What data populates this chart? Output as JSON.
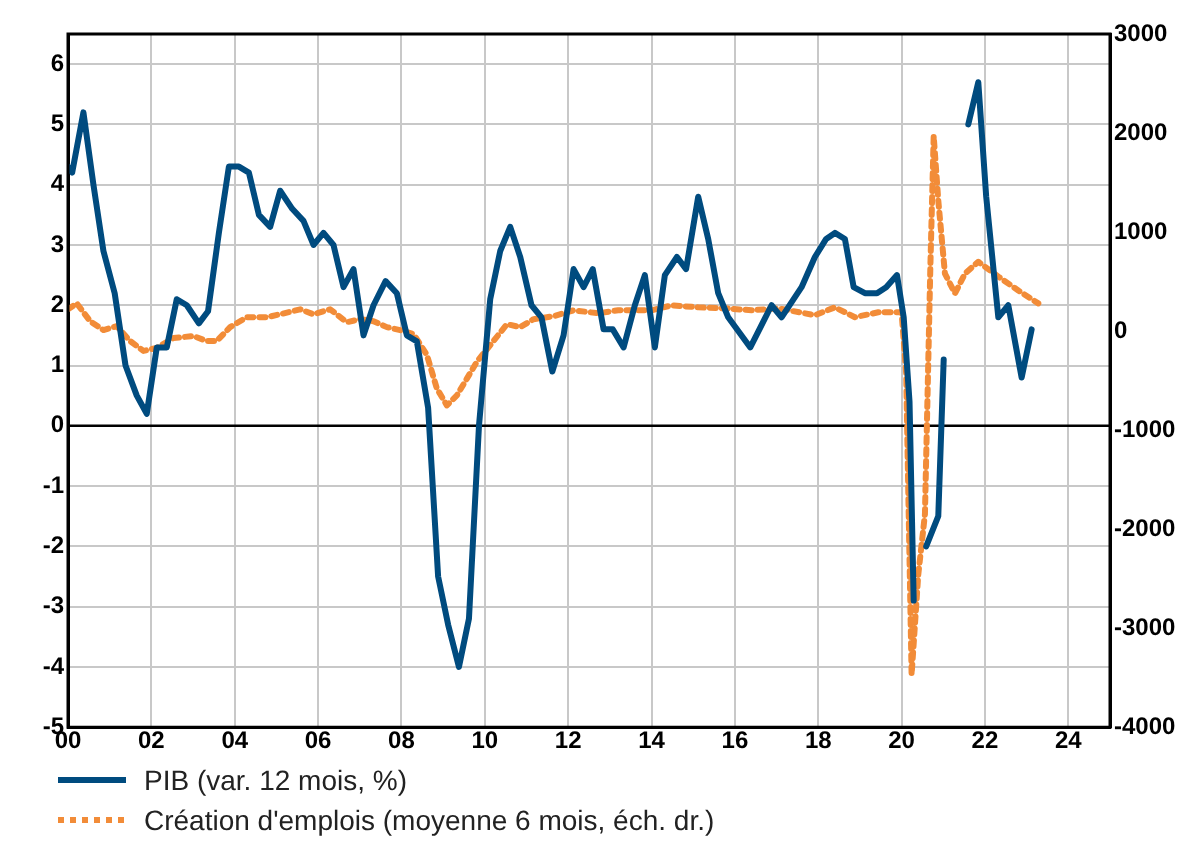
{
  "chart_data": {
    "type": "line",
    "xlim": [
      0,
      25
    ],
    "xticks": [
      {
        "value": 0,
        "label": "00"
      },
      {
        "value": 2,
        "label": "02"
      },
      {
        "value": 4,
        "label": "04"
      },
      {
        "value": 6,
        "label": "06"
      },
      {
        "value": 8,
        "label": "08"
      },
      {
        "value": 10,
        "label": "10"
      },
      {
        "value": 12,
        "label": "12"
      },
      {
        "value": 14,
        "label": "14"
      },
      {
        "value": 16,
        "label": "16"
      },
      {
        "value": 18,
        "label": "18"
      },
      {
        "value": 20,
        "label": "20"
      },
      {
        "value": 22,
        "label": "22"
      },
      {
        "value": 24,
        "label": "24"
      }
    ],
    "ylim": [
      -5,
      6.5
    ],
    "yticks": [
      -5,
      -4,
      -3,
      -2,
      -1,
      0,
      1,
      2,
      3,
      4,
      5,
      6
    ],
    "y2lim": [
      -4000,
      3000
    ],
    "y2ticks": [
      -4000,
      -3000,
      -2000,
      -1000,
      0,
      1000,
      2000,
      3000
    ],
    "grid": true,
    "legend": "bottom",
    "marker": "none",
    "ref_lines": [
      {
        "axis": "y",
        "value": 0,
        "color": "#000000"
      }
    ],
    "series": [
      {
        "name": "PIB (var. 12 mois, %)",
        "color": "#004b7f",
        "line_style": "solid",
        "x": [
          0,
          0.1,
          0.37,
          0.61,
          0.85,
          1.12,
          1.38,
          1.65,
          1.89,
          2.13,
          2.37,
          2.61,
          2.85,
          3.14,
          3.36,
          3.62,
          3.86,
          4.1,
          4.34,
          4.58,
          4.85,
          5.09,
          5.38,
          5.65,
          5.89,
          6.13,
          6.37,
          6.61,
          6.85,
          7.09,
          7.33,
          7.62,
          7.89,
          8.13,
          8.37,
          8.64,
          8.88,
          9.12,
          9.38,
          9.62,
          9.86,
          10.13,
          10.37,
          10.61,
          10.85,
          11.12,
          11.36,
          11.62,
          11.89,
          12.13,
          12.37,
          12.59,
          12.85,
          13.07,
          13.33,
          13.6,
          13.84,
          14.08,
          14.32,
          14.61,
          14.83,
          15.12,
          15.36,
          15.6,
          15.84,
          16.37,
          16.88,
          17.12,
          17.6,
          17.92,
          18.19,
          18.4,
          18.64,
          18.85,
          19.12,
          19.41,
          19.63,
          19.89,
          20.05,
          20.19,
          20.29,
          20.37,
          20.42,
          20.48,
          20.59,
          20.88,
          21.01,
          21.2,
          21.36,
          21.52,
          21.6,
          21.84,
          22.03,
          22.32,
          22.56,
          22.88,
          23.12
        ],
        "values": [
          4.3,
          4.2,
          5.2,
          4.0,
          2.9,
          2.2,
          1.0,
          0.5,
          0.2,
          1.3,
          1.3,
          2.1,
          2.0,
          1.7,
          1.9,
          3.2,
          4.3,
          4.3,
          4.2,
          3.5,
          3.3,
          3.9,
          3.6,
          3.4,
          3.0,
          3.2,
          3.0,
          2.3,
          2.6,
          1.5,
          2.0,
          2.4,
          2.2,
          1.5,
          1.4,
          0.3,
          -2.5,
          -3.3,
          -4.0,
          -3.2,
          0.0,
          2.1,
          2.9,
          3.3,
          2.8,
          2.0,
          1.8,
          0.9,
          1.5,
          2.6,
          2.3,
          2.6,
          1.6,
          1.6,
          1.3,
          2.0,
          2.5,
          1.3,
          2.5,
          2.8,
          2.6,
          3.8,
          3.1,
          2.2,
          1.8,
          1.3,
          2.0,
          1.8,
          2.3,
          2.8,
          3.1,
          3.2,
          3.1,
          2.3,
          2.2,
          2.2,
          2.3,
          2.5,
          1.8,
          0.4,
          -2.9,
          null,
          null,
          null,
          -2.0,
          -1.5,
          1.1,
          null,
          null,
          null,
          5.0,
          5.7,
          3.8,
          1.8,
          2.0,
          0.8,
          1.6
        ]
      },
      {
        "name": "Création d'emplois (moyenne 6 mois, éch. dr.)",
        "color": "#f28c38",
        "line_style": "dotted",
        "axis": "y2",
        "x": [
          0,
          0.21,
          0.53,
          0.85,
          1.17,
          1.49,
          1.81,
          2.13,
          2.53,
          3.01,
          3.33,
          3.57,
          3.89,
          4.29,
          4.77,
          5.09,
          5.57,
          5.89,
          6.29,
          6.69,
          7.01,
          7.33,
          7.65,
          7.97,
          8.29,
          8.61,
          8.85,
          9.09,
          9.33,
          9.57,
          9.81,
          10.21,
          10.53,
          10.85,
          11.17,
          11.65,
          12.13,
          12.72,
          13.2,
          14,
          14.48,
          15.12,
          15.76,
          16.4,
          17.04,
          17.92,
          18.4,
          18.88,
          19.44,
          20,
          20.11,
          20.24,
          20.4,
          20.56,
          20.69,
          20.77,
          20.88,
          21.04,
          21.28,
          21.52,
          21.84,
          22.32,
          22.8,
          23.28
        ],
        "values": [
          220,
          280,
          100,
          10,
          50,
          -100,
          -200,
          -170,
          -70,
          -50,
          -100,
          -100,
          40,
          140,
          140,
          170,
          220,
          170,
          220,
          90,
          120,
          100,
          40,
          10,
          -30,
          -240,
          -580,
          -750,
          -650,
          -480,
          -310,
          -100,
          70,
          40,
          120,
          150,
          210,
          180,
          210,
          210,
          260,
          240,
          230,
          210,
          230,
          160,
          240,
          140,
          190,
          190,
          -430,
          -3470,
          -2460,
          -1850,
          650,
          1970,
          1320,
          580,
          380,
          580,
          700,
          550,
          410,
          280
        ]
      }
    ]
  }
}
